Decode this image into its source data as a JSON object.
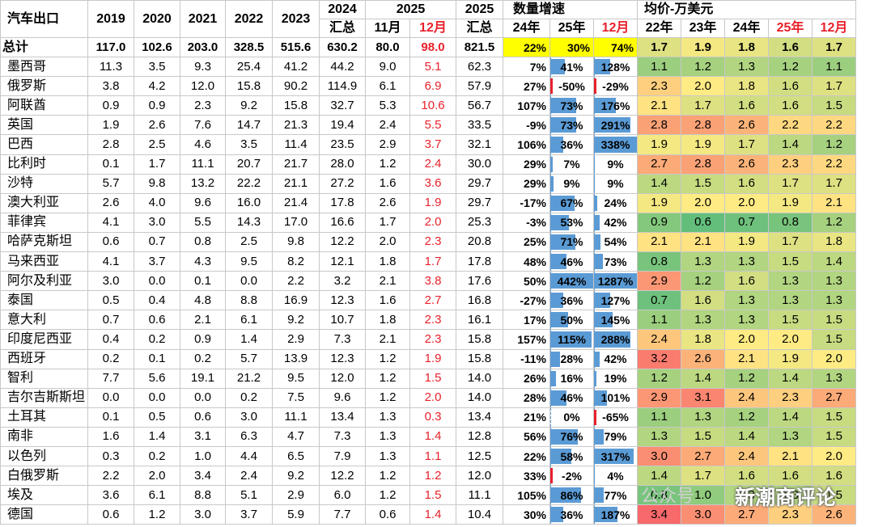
{
  "title": "汽车出口",
  "headers": {
    "y2019": "2019",
    "y2020": "2020",
    "y2021": "2021",
    "y2022": "2022",
    "y2023": "2023",
    "y2024_top": "2024",
    "y2024_sub": "汇总",
    "y2025_group": "2025",
    "nov": "11月",
    "dec": "12月",
    "y2025_sum_top": "2025",
    "y2025_sum_sub": "汇总",
    "growth_group": "数量增速",
    "g24": "24年",
    "g25": "25年",
    "g12": "12月",
    "price_group": "均价-万美元",
    "p22": "22年",
    "p23": "23年",
    "p24": "24年",
    "p25": "25年",
    "p12": "12月"
  },
  "colors": {
    "accent_red": "#e8212b",
    "bar_blue": "#5b9bd5",
    "highlight_yellow": "#ffff00"
  },
  "total": {
    "label": "总计",
    "v": [
      "117.0",
      "102.6",
      "203.0",
      "328.5",
      "515.6",
      "630.2",
      "80.0",
      "98.0",
      "821.5"
    ],
    "g24": "22%",
    "g25": "30%",
    "g12": "74%",
    "p": [
      "1.7",
      "1.9",
      "1.8",
      "1.6",
      "1.7"
    ]
  },
  "rows": [
    {
      "name": "墨西哥",
      "v": [
        "11.3",
        "3.5",
        "9.3",
        "25.4",
        "41.2",
        "44.2",
        "9.0",
        "5.1",
        "62.3"
      ],
      "g24": "7%",
      "g25": "41%",
      "g12": "128%",
      "p": [
        "1.1",
        "1.2",
        "1.3",
        "1.2",
        "1.1"
      ]
    },
    {
      "name": "俄罗斯",
      "v": [
        "3.8",
        "4.2",
        "12.0",
        "15.8",
        "90.2",
        "114.9",
        "6.1",
        "6.9",
        "57.9"
      ],
      "g24": "27%",
      "g25": "-50%",
      "g12": "-29%",
      "p": [
        "2.3",
        "2.0",
        "1.8",
        "1.6",
        "1.7"
      ]
    },
    {
      "name": "阿联酋",
      "v": [
        "0.9",
        "0.9",
        "2.3",
        "9.2",
        "15.8",
        "32.7",
        "5.3",
        "10.6",
        "56.7"
      ],
      "g24": "107%",
      "g25": "73%",
      "g12": "176%",
      "p": [
        "2.1",
        "1.7",
        "1.6",
        "1.6",
        "1.5"
      ]
    },
    {
      "name": "英国",
      "v": [
        "1.9",
        "2.6",
        "7.6",
        "14.7",
        "21.3",
        "19.4",
        "2.4",
        "5.5",
        "33.5"
      ],
      "g24": "-9%",
      "g25": "73%",
      "g12": "291%",
      "p": [
        "2.8",
        "2.8",
        "2.6",
        "2.2",
        "2.2"
      ]
    },
    {
      "name": "巴西",
      "v": [
        "2.8",
        "2.5",
        "4.6",
        "3.5",
        "11.4",
        "23.5",
        "2.9",
        "3.7",
        "32.1"
      ],
      "g24": "106%",
      "g25": "36%",
      "g12": "338%",
      "p": [
        "1.9",
        "1.9",
        "1.7",
        "1.4",
        "1.2"
      ]
    },
    {
      "name": "比利时",
      "v": [
        "0.1",
        "1.7",
        "11.1",
        "20.7",
        "21.7",
        "28.0",
        "1.2",
        "2.4",
        "30.0"
      ],
      "g24": "29%",
      "g25": "7%",
      "g12": "9%",
      "p": [
        "2.7",
        "2.8",
        "2.6",
        "2.3",
        "2.2"
      ]
    },
    {
      "name": "沙特",
      "v": [
        "5.7",
        "9.8",
        "13.2",
        "22.2",
        "21.1",
        "27.2",
        "1.6",
        "3.6",
        "29.7"
      ],
      "g24": "29%",
      "g25": "9%",
      "g12": "9%",
      "p": [
        "1.4",
        "1.5",
        "1.6",
        "1.7",
        "1.7"
      ]
    },
    {
      "name": "澳大利亚",
      "v": [
        "2.6",
        "4.0",
        "9.6",
        "16.0",
        "21.4",
        "17.8",
        "2.6",
        "1.9",
        "29.7"
      ],
      "g24": "-17%",
      "g25": "67%",
      "g12": "24%",
      "p": [
        "1.9",
        "2.0",
        "2.0",
        "1.9",
        "2.1"
      ]
    },
    {
      "name": "菲律宾",
      "v": [
        "4.1",
        "3.0",
        "5.5",
        "14.3",
        "17.0",
        "16.6",
        "1.7",
        "2.0",
        "25.3"
      ],
      "g24": "-3%",
      "g25": "53%",
      "g12": "42%",
      "p": [
        "0.9",
        "0.6",
        "0.7",
        "0.8",
        "1.2"
      ]
    },
    {
      "name": "哈萨克斯坦",
      "v": [
        "0.6",
        "0.7",
        "0.8",
        "2.5",
        "9.8",
        "12.2",
        "2.0",
        "2.3",
        "20.8"
      ],
      "g24": "25%",
      "g25": "71%",
      "g12": "54%",
      "p": [
        "2.1",
        "2.1",
        "1.9",
        "1.7",
        "1.8"
      ]
    },
    {
      "name": "马来西亚",
      "v": [
        "4.1",
        "3.7",
        "4.3",
        "9.5",
        "8.2",
        "12.1",
        "1.8",
        "1.7",
        "17.8"
      ],
      "g24": "48%",
      "g25": "46%",
      "g12": "73%",
      "p": [
        "0.8",
        "1.3",
        "1.3",
        "1.5",
        "1.4"
      ]
    },
    {
      "name": "阿尔及利亚",
      "v": [
        "3.0",
        "0.0",
        "0.1",
        "0.0",
        "2.2",
        "3.2",
        "2.1",
        "3.8",
        "17.6"
      ],
      "g24": "50%",
      "g25": "442%",
      "g12": "1287%",
      "p": [
        "2.9",
        "1.2",
        "1.6",
        "1.3",
        "1.3"
      ]
    },
    {
      "name": "泰国",
      "v": [
        "0.5",
        "0.4",
        "4.8",
        "8.8",
        "16.9",
        "12.3",
        "1.6",
        "2.7",
        "16.8"
      ],
      "g24": "-27%",
      "g25": "36%",
      "g12": "127%",
      "p": [
        "0.7",
        "1.6",
        "1.3",
        "1.3",
        "1.3"
      ]
    },
    {
      "name": "意大利",
      "v": [
        "0.7",
        "0.6",
        "2.1",
        "6.1",
        "9.2",
        "10.7",
        "1.8",
        "2.3",
        "16.1"
      ],
      "g24": "17%",
      "g25": "50%",
      "g12": "145%",
      "p": [
        "1.1",
        "1.3",
        "1.3",
        "1.5",
        "1.5"
      ]
    },
    {
      "name": "印度尼西亚",
      "v": [
        "0.4",
        "0.2",
        "0.9",
        "1.4",
        "2.9",
        "7.3",
        "2.1",
        "2.3",
        "15.8"
      ],
      "g24": "157%",
      "g25": "115%",
      "g12": "288%",
      "p": [
        "2.4",
        "1.8",
        "2.0",
        "2.0",
        "1.5"
      ]
    },
    {
      "name": "西班牙",
      "v": [
        "0.2",
        "0.1",
        "0.2",
        "5.7",
        "13.9",
        "12.3",
        "1.2",
        "1.9",
        "15.8"
      ],
      "g24": "-11%",
      "g25": "28%",
      "g12": "42%",
      "p": [
        "3.2",
        "2.6",
        "2.1",
        "1.9",
        "2.0"
      ]
    },
    {
      "name": "智利",
      "v": [
        "7.7",
        "5.6",
        "19.1",
        "21.2",
        "9.5",
        "12.0",
        "1.2",
        "1.5",
        "14.0"
      ],
      "g24": "26%",
      "g25": "16%",
      "g12": "19%",
      "p": [
        "1.2",
        "1.4",
        "1.2",
        "1.4",
        "1.3"
      ]
    },
    {
      "name": "吉尔吉斯斯坦",
      "v": [
        "0.0",
        "0.0",
        "0.0",
        "0.2",
        "7.5",
        "9.6",
        "1.2",
        "2.0",
        "14.0"
      ],
      "g24": "28%",
      "g25": "46%",
      "g12": "101%",
      "p": [
        "2.9",
        "3.1",
        "2.4",
        "2.3",
        "2.7"
      ]
    },
    {
      "name": "土耳其",
      "v": [
        "0.1",
        "0.5",
        "0.6",
        "3.0",
        "11.1",
        "13.4",
        "1.3",
        "0.3",
        "13.4"
      ],
      "g24": "21%",
      "g25": "0%",
      "g12": "-65%",
      "p": [
        "1.1",
        "1.3",
        "1.2",
        "1.4",
        "1.5"
      ]
    },
    {
      "name": "南非",
      "v": [
        "1.6",
        "1.4",
        "3.1",
        "6.3",
        "4.7",
        "7.3",
        "1.3",
        "1.4",
        "12.8"
      ],
      "g24": "56%",
      "g25": "76%",
      "g12": "79%",
      "p": [
        "1.3",
        "1.5",
        "1.4",
        "1.3",
        "1.5"
      ]
    },
    {
      "name": "以色列",
      "v": [
        "0.3",
        "0.2",
        "1.0",
        "4.4",
        "6.5",
        "7.9",
        "1.3",
        "1.1",
        "12.5"
      ],
      "g24": "22%",
      "g25": "58%",
      "g12": "317%",
      "p": [
        "3.0",
        "2.7",
        "2.4",
        "2.1",
        "2.0"
      ]
    },
    {
      "name": "白俄罗斯",
      "v": [
        "2.2",
        "2.0",
        "3.4",
        "2.4",
        "9.2",
        "12.2",
        "1.2",
        "1.2",
        "12.0"
      ],
      "g24": "33%",
      "g25": "-2%",
      "g12": "4%",
      "p": [
        "1.4",
        "1.7",
        "1.6",
        "1.6",
        "1.6"
      ]
    },
    {
      "name": "埃及",
      "v": [
        "3.6",
        "6.1",
        "8.8",
        "5.1",
        "2.9",
        "6.0",
        "1.2",
        "1.5",
        "11.1"
      ],
      "g24": "105%",
      "g25": "86%",
      "g12": "77%",
      "p": [
        "0.8",
        "1.0",
        "1.3",
        "1.3",
        "1.5"
      ]
    },
    {
      "name": "德国",
      "v": [
        "0.6",
        "1.2",
        "3.0",
        "3.7",
        "5.9",
        "7.7",
        "0.6",
        "1.4",
        "10.4"
      ],
      "g24": "30%",
      "g25": "36%",
      "g12": "187%",
      "p": [
        "3.4",
        "3.0",
        "2.7",
        "2.3",
        "2.6"
      ]
    }
  ],
  "watermark": "公众号",
  "brand": "新潮商评论"
}
